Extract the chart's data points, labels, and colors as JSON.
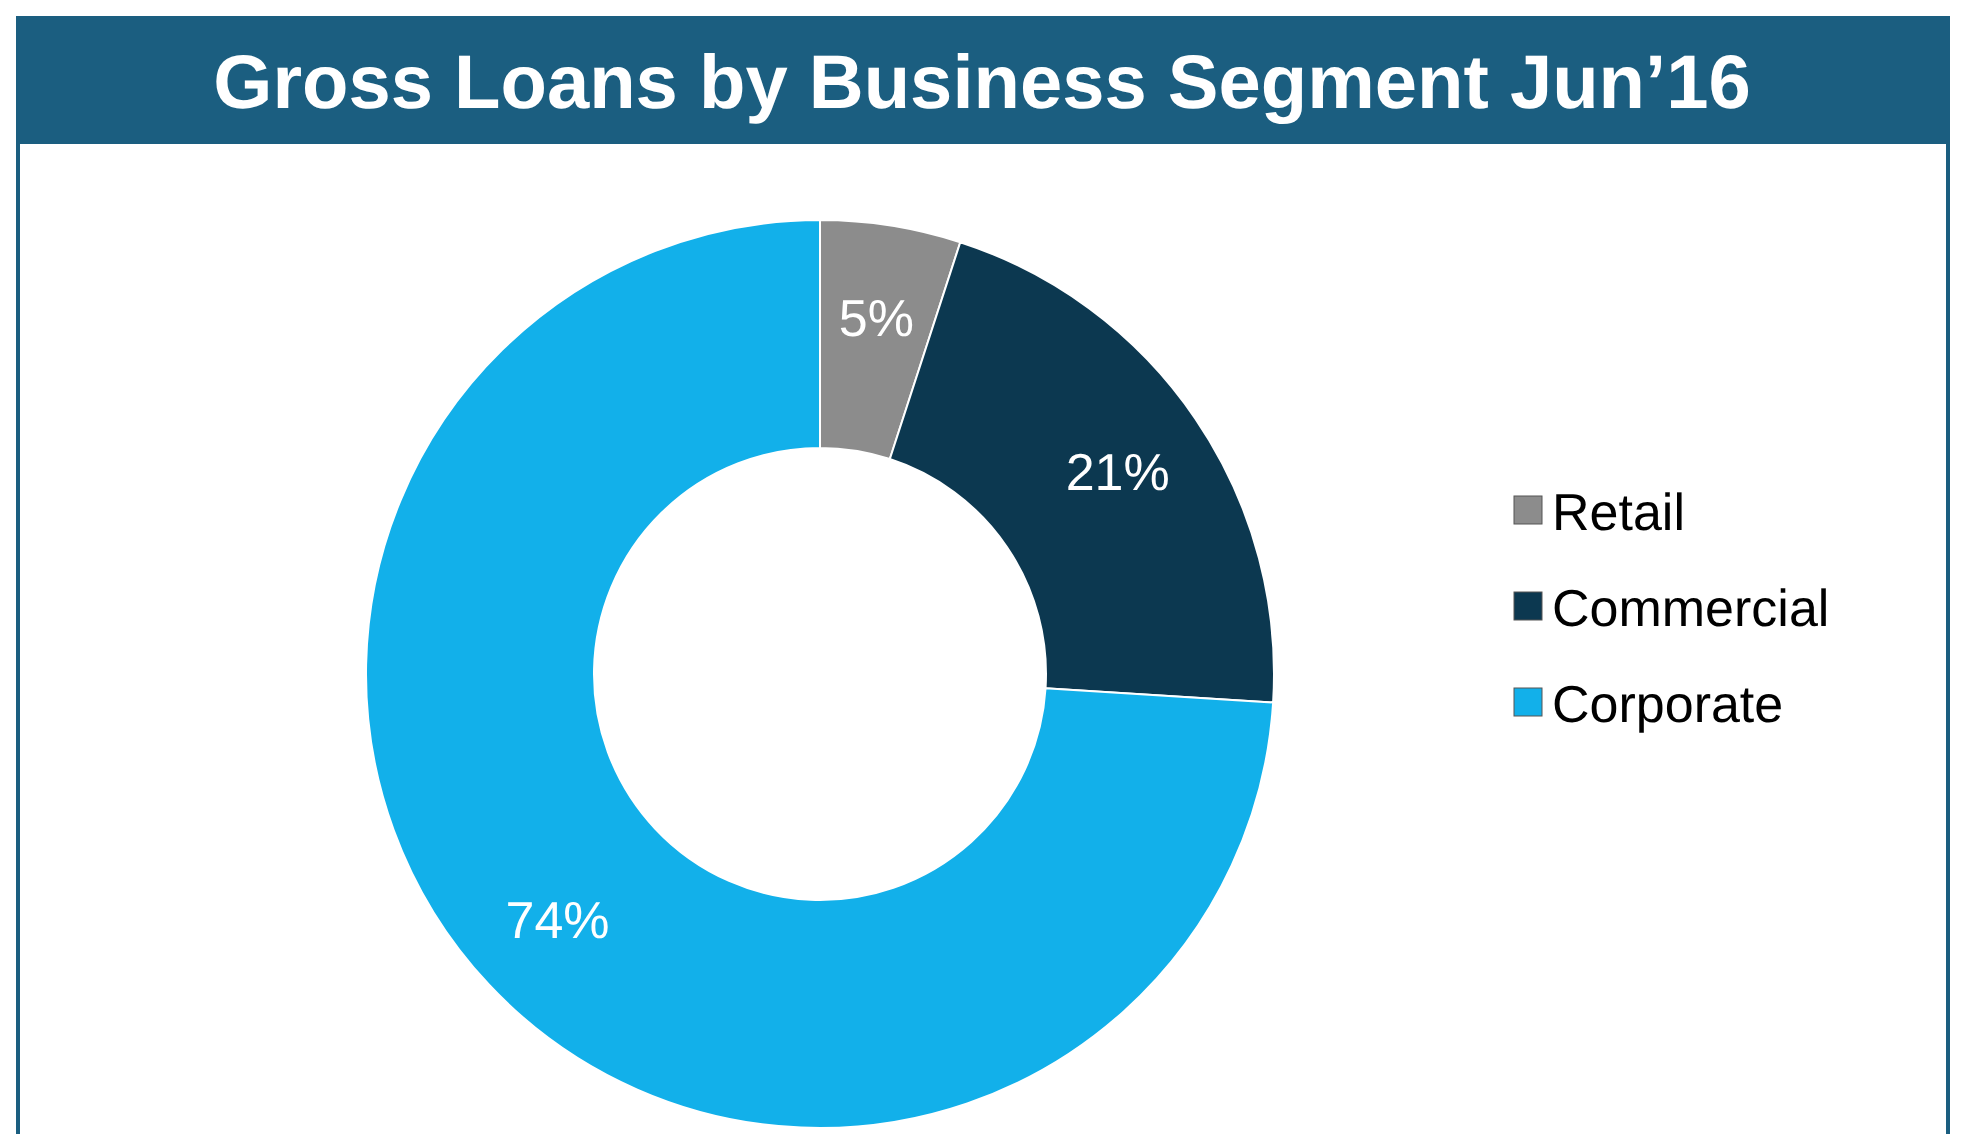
{
  "chart_data": {
    "type": "donut",
    "title": "Gross Loans by Business Segment Jun’16",
    "categories": [
      "Retail",
      "Commercial",
      "Corporate"
    ],
    "values": [
      5,
      21,
      74
    ],
    "value_labels": [
      "5%",
      "21%",
      "74%"
    ],
    "colors": [
      "#8c8c8c",
      "#0c3850",
      "#12b0ea"
    ],
    "legend": "right"
  }
}
